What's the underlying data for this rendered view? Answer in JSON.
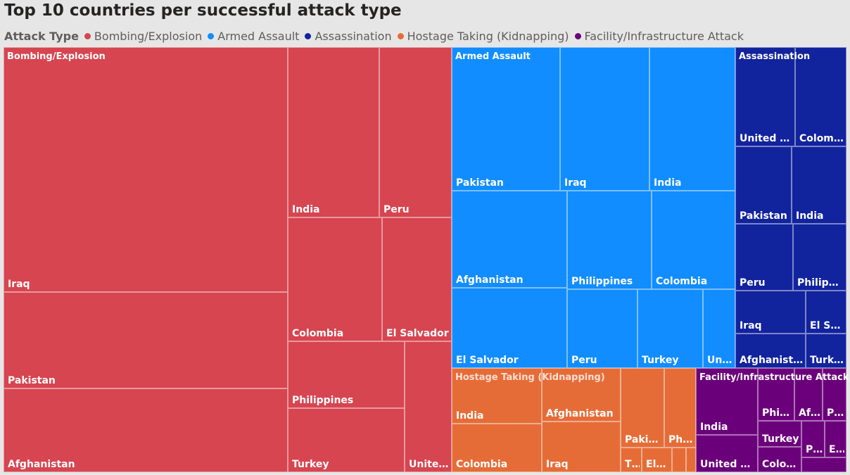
{
  "title": "Top 10 countries per successful attack type",
  "legend": {
    "title": "Attack Type",
    "items": [
      {
        "label": "Bombing/Explosion",
        "color": "#d64550"
      },
      {
        "label": "Armed Assault",
        "color": "#118dff"
      },
      {
        "label": "Assassination",
        "color": "#12239e"
      },
      {
        "label": "Hostage Taking (Kidnapping)",
        "color": "#e66c37"
      },
      {
        "label": "Facility/Infrastructure Attack",
        "color": "#6b007b"
      }
    ]
  },
  "chart_data": {
    "type": "treemap",
    "groups": [
      {
        "name": "Bombing/Explosion",
        "color": "#d64550",
        "items": [
          {
            "label": "Iraq",
            "value": 14000
          },
          {
            "label": "Pakistan",
            "value": 5500
          },
          {
            "label": "Afghanistan",
            "value": 4800
          },
          {
            "label": "India",
            "value": 3400
          },
          {
            "label": "Peru",
            "value": 2700
          },
          {
            "label": "Colombia",
            "value": 2500
          },
          {
            "label": "El Salvador",
            "value": 2000
          },
          {
            "label": "Philippines",
            "value": 1900
          },
          {
            "label": "Turkey",
            "value": 1700
          },
          {
            "label": "Unite…",
            "value": 1200
          }
        ]
      },
      {
        "name": "Armed Assault",
        "color": "#118dff",
        "items": [
          {
            "label": "Pakistan",
            "value": 2300
          },
          {
            "label": "Iraq",
            "value": 1900
          },
          {
            "label": "India",
            "value": 1800
          },
          {
            "label": "Afghanistan",
            "value": 1600
          },
          {
            "label": "Philippines",
            "value": 1300
          },
          {
            "label": "Colombia",
            "value": 1200
          },
          {
            "label": "El Salvador",
            "value": 1100
          },
          {
            "label": "Peru",
            "value": 700
          },
          {
            "label": "Turkey",
            "value": 650
          },
          {
            "label": "Uni…",
            "value": 300
          }
        ]
      },
      {
        "name": "Assassination",
        "color": "#12239e",
        "items": [
          {
            "label": "United K…",
            "value": 620
          },
          {
            "label": "Colom…",
            "value": 530
          },
          {
            "label": "Pakistan",
            "value": 600
          },
          {
            "label": "India",
            "value": 540
          },
          {
            "label": "Peru",
            "value": 490
          },
          {
            "label": "Philippi…",
            "value": 450
          },
          {
            "label": "Iraq",
            "value": 430
          },
          {
            "label": "El Sal…",
            "value": 250
          },
          {
            "label": "Afghanistan",
            "value": 330
          },
          {
            "label": "Turkey",
            "value": 200
          }
        ]
      },
      {
        "name": "Hostage Taking (Kidnapping)",
        "color": "#e66c37",
        "items": [
          {
            "label": "India",
            "value": 700
          },
          {
            "label": "Afghanistan",
            "value": 600
          },
          {
            "label": "Colombia",
            "value": 560
          },
          {
            "label": "Iraq",
            "value": 490
          },
          {
            "label": "Pakis…",
            "value": 280
          },
          {
            "label": "Phi…",
            "value": 210
          },
          {
            "label": "T…",
            "value": 90
          },
          {
            "label": "El…",
            "value": 100
          },
          {
            "label": "",
            "value": 60
          },
          {
            "label": "",
            "value": 50
          }
        ]
      },
      {
        "name": "Facility/Infrastructure Attack",
        "color": "#6b007b",
        "items": [
          {
            "label": "India",
            "value": 480
          },
          {
            "label": "United Ki…",
            "value": 280
          },
          {
            "label": "Phil…",
            "value": 190
          },
          {
            "label": "Af…",
            "value": 130
          },
          {
            "label": "P…",
            "value": 120
          },
          {
            "label": "Turkey",
            "value": 130
          },
          {
            "label": "Colo…",
            "value": 120
          },
          {
            "label": "P…",
            "value": 90
          },
          {
            "label": "E…",
            "value": 100
          },
          {
            "label": "",
            "value": 60
          }
        ]
      }
    ]
  }
}
